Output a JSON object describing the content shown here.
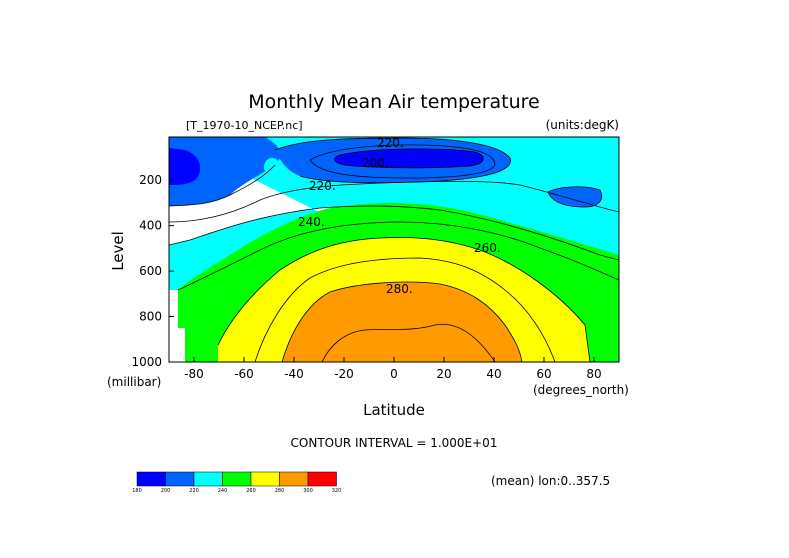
{
  "chart_data": {
    "type": "contour",
    "title": "Monthly Mean Air temperature",
    "dataset_label": "[T_1970-10_NCEP.nc]",
    "units_label": "(units:degK)",
    "xlabel": "Latitude",
    "x_units": "(degrees_north)",
    "ylabel": "Level",
    "y_units": "(millibar)",
    "xlim": [
      -90,
      90
    ],
    "ylim": [
      1000,
      10
    ],
    "x_ticks": [
      "-80",
      "-60",
      "-40",
      "-20",
      "0",
      "20",
      "40",
      "60",
      "80"
    ],
    "y_ticks": [
      "200",
      "400",
      "600",
      "800",
      "1000"
    ],
    "contour_interval": "CONTOUR INTERVAL = 1.000E+01",
    "mean_note": "(mean) lon:0..357.5",
    "contour_labels": [
      "220.",
      "200.",
      "220.",
      "240.",
      "260.",
      "280."
    ],
    "colorbar_ticks": [
      "180",
      "200",
      "220",
      "240",
      "260",
      "280",
      "300",
      "320"
    ],
    "colors": {
      "below_200": "#0000ff",
      "200_220": "#0064ff",
      "220_240": "#00ffff",
      "240_260": "#00ff00",
      "260_280": "#ffff00",
      "280_300": "#ff9b00",
      "300_320": "#ff0000"
    }
  }
}
